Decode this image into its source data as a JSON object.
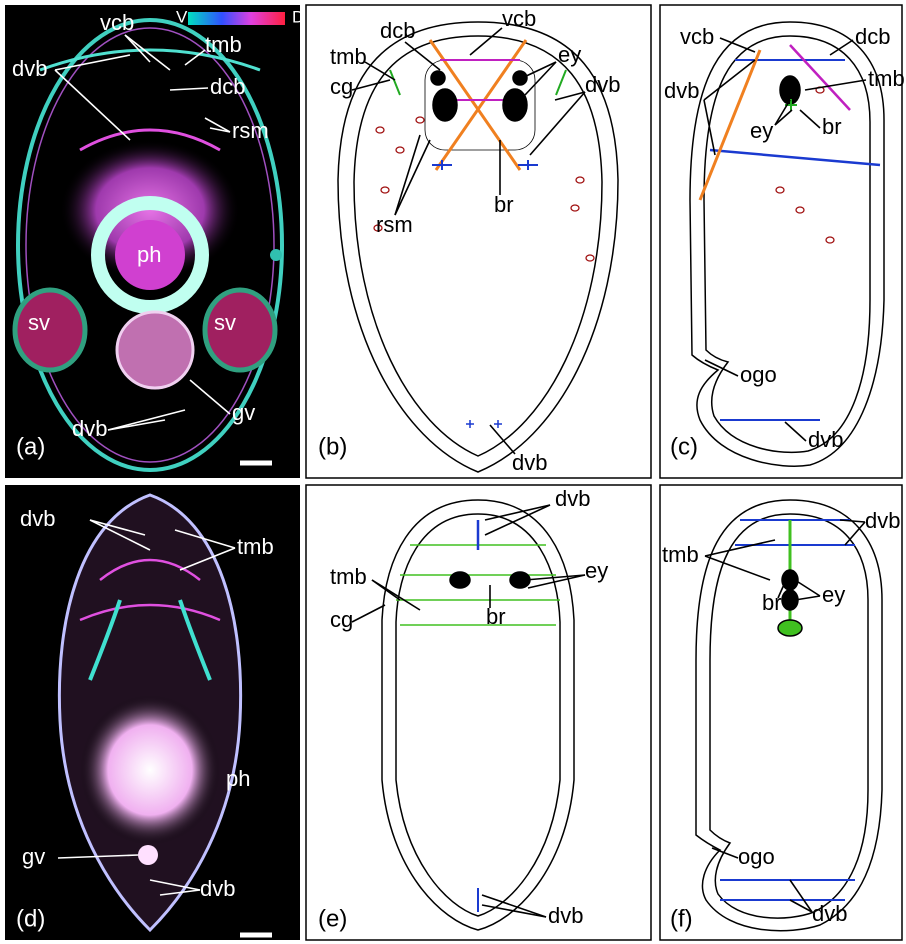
{
  "panels": [
    {
      "letter": "(a)",
      "colorbar": [
        "V",
        "D"
      ],
      "labels": [
        "vcb",
        "tmb",
        "dvb",
        "dcb",
        "rsm",
        "ph",
        "sv",
        "sv",
        "dvb",
        "gv"
      ]
    },
    {
      "letter": "(b)",
      "labels": [
        "dcb",
        "vcb",
        "tmb",
        "ey",
        "cg",
        "dvb",
        "br",
        "rsm",
        "dvb"
      ]
    },
    {
      "letter": "(c)",
      "labels": [
        "vcb",
        "dcb",
        "tmb",
        "dvb",
        "ey",
        "br",
        "ogo",
        "dvb"
      ]
    },
    {
      "letter": "(d)",
      "labels": [
        "dvb",
        "tmb",
        "ph",
        "gv",
        "dvb"
      ]
    },
    {
      "letter": "(e)",
      "labels": [
        "dvb",
        "tmb",
        "ey",
        "cg",
        "br",
        "dvb"
      ]
    },
    {
      "letter": "(f)",
      "labels": [
        "dvb",
        "tmb",
        "br",
        "ey",
        "ogo",
        "dvb"
      ]
    }
  ]
}
